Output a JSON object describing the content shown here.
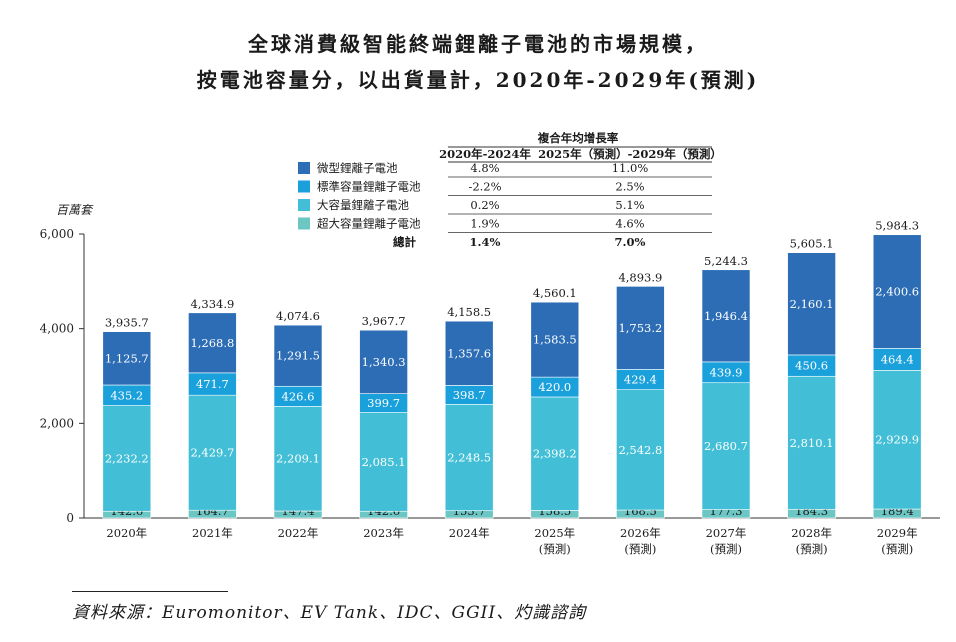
{
  "title_line1": "全球消費級智能終端鋰離子電池的市場規模，",
  "title_line2": "按電池容量分，以出貨量計，2020年-2029年(預測)",
  "source": "資料來源：Euromonitor、EV Tank、IDC、GGII、灼識諮詢",
  "chart_data": {
    "type": "bar",
    "stacked": true,
    "ylabel": "百萬套",
    "ylim": [
      0,
      6000
    ],
    "yticks": [
      0,
      2000,
      4000,
      6000
    ],
    "ytick_labels": [
      "0",
      "2,000",
      "4,000",
      "6,000"
    ],
    "categories": [
      "2020年",
      "2021年",
      "2022年",
      "2023年",
      "2024年",
      "2025年",
      "2026年",
      "2027年",
      "2028年",
      "2029年"
    ],
    "category_sublabels": [
      "",
      "",
      "",
      "",
      "",
      "(預測)",
      "(預測)",
      "(預測)",
      "(預測)",
      "(預測)"
    ],
    "series": [
      {
        "name": "超大容量鋰離子電池",
        "color": "#6cc6c4",
        "values": [
          142.6,
          164.7,
          147.4,
          142.6,
          153.7,
          158.5,
          168.5,
          177.3,
          184.3,
          189.4
        ],
        "labels": [
          "142.6",
          "164.7",
          "147.4",
          "142.6",
          "153.7",
          "158.5",
          "168.5",
          "177.3",
          "184.3",
          "189.4"
        ]
      },
      {
        "name": "大容量鋰離子電池",
        "color": "#42bfd6",
        "values": [
          2232.2,
          2429.7,
          2209.1,
          2085.1,
          2248.5,
          2398.2,
          2542.8,
          2680.7,
          2810.1,
          2929.9
        ],
        "labels": [
          "2,232.2",
          "2,429.7",
          "2,209.1",
          "2,085.1",
          "2,248.5",
          "2,398.2",
          "2,542.8",
          "2,680.7",
          "2,810.1",
          "2,929.9"
        ]
      },
      {
        "name": "標準容量鋰離子電池",
        "color": "#1aa1dc",
        "values": [
          435.2,
          471.7,
          426.6,
          399.7,
          398.7,
          420.0,
          429.4,
          439.9,
          450.6,
          464.4
        ],
        "labels": [
          "435.2",
          "471.7",
          "426.6",
          "399.7",
          "398.7",
          "420.0",
          "429.4",
          "439.9",
          "450.6",
          "464.4"
        ]
      },
      {
        "name": "微型鋰離子電池",
        "color": "#2c6db5",
        "values": [
          1125.7,
          1268.8,
          1291.5,
          1340.3,
          1357.6,
          1583.5,
          1753.2,
          1946.4,
          2160.1,
          2400.6
        ],
        "labels": [
          "1,125.7",
          "1,268.8",
          "1,291.5",
          "1,340.3",
          "1,357.6",
          "1,583.5",
          "1,753.2",
          "1,946.4",
          "2,160.1",
          "2,400.6"
        ]
      }
    ],
    "totals": [
      "3,935.7",
      "4,334.9",
      "4,074.6",
      "3,967.7",
      "4,158.5",
      "4,560.1",
      "4,893.9",
      "5,244.3",
      "5,605.1",
      "5,984.3"
    ],
    "cagr_table": {
      "title": "複合年均增長率",
      "headers": [
        "2020年-2024年",
        "2025年（預測）-2029年（預測）"
      ],
      "rows": [
        {
          "name": "微型鋰離子電池",
          "color": "#2c6db5",
          "a": "4.8%",
          "b": "11.0%"
        },
        {
          "name": "標準容量鋰離子電池",
          "color": "#1aa1dc",
          "a": "-2.2%",
          "b": "2.5%"
        },
        {
          "name": "大容量鋰離子電池",
          "color": "#42bfd6",
          "a": "0.2%",
          "b": "5.1%"
        },
        {
          "name": "超大容量鋰離子電池",
          "color": "#6cc6c4",
          "a": "1.9%",
          "b": "4.6%"
        }
      ],
      "total_label": "總計",
      "total_a": "1.4%",
      "total_b": "7.0%"
    }
  }
}
